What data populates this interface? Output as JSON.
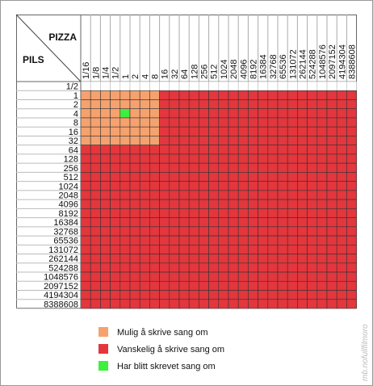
{
  "header": {
    "column_title": "PIZZA",
    "row_title": "PILS"
  },
  "columns": [
    "1/16",
    "1/8",
    "1/4",
    "1/2",
    "1",
    "2",
    "4",
    "8",
    "16",
    "32",
    "64",
    "128",
    "256",
    "512",
    "1024",
    "2048",
    "4096",
    "8192",
    "16384",
    "32768",
    "65536",
    "131072",
    "262144",
    "524288",
    "1048576",
    "2097152",
    "4194304",
    "8388608"
  ],
  "rows": [
    "1/2",
    "1",
    "2",
    "4",
    "8",
    "16",
    "32",
    "64",
    "128",
    "256",
    "512",
    "1024",
    "2048",
    "4096",
    "8192",
    "16384",
    "32768",
    "65536",
    "131072",
    "262144",
    "524288",
    "1048576",
    "2097152",
    "4194304",
    "8388608"
  ],
  "legend": [
    {
      "label": "Mulig å skrive sang om",
      "color": "#f5a26f"
    },
    {
      "label": "Vanskelig å skrive sang om",
      "color": "#e3363d"
    },
    {
      "label": "Har blitt skrevet sang om",
      "color": "#3ef03e"
    }
  ],
  "cells": [
    [
      null,
      null,
      null,
      null,
      null,
      null,
      null,
      null,
      null,
      null,
      null,
      null,
      null,
      null,
      null,
      null,
      null,
      null,
      null,
      null,
      null,
      null,
      null,
      null,
      null,
      null,
      null,
      null
    ],
    [
      0,
      0,
      0,
      0,
      0,
      0,
      0,
      0,
      1,
      1,
      1,
      1,
      1,
      1,
      1,
      1,
      1,
      1,
      1,
      1,
      1,
      1,
      1,
      1,
      1,
      1,
      1,
      1
    ],
    [
      0,
      0,
      0,
      0,
      0,
      0,
      0,
      0,
      1,
      1,
      1,
      1,
      1,
      1,
      1,
      1,
      1,
      1,
      1,
      1,
      1,
      1,
      1,
      1,
      1,
      1,
      1,
      1
    ],
    [
      0,
      0,
      0,
      0,
      2,
      0,
      0,
      0,
      1,
      1,
      1,
      1,
      1,
      1,
      1,
      1,
      1,
      1,
      1,
      1,
      1,
      1,
      1,
      1,
      1,
      1,
      1,
      1
    ],
    [
      0,
      0,
      0,
      0,
      0,
      0,
      0,
      0,
      1,
      1,
      1,
      1,
      1,
      1,
      1,
      1,
      1,
      1,
      1,
      1,
      1,
      1,
      1,
      1,
      1,
      1,
      1,
      1
    ],
    [
      0,
      0,
      0,
      0,
      0,
      0,
      0,
      0,
      1,
      1,
      1,
      1,
      1,
      1,
      1,
      1,
      1,
      1,
      1,
      1,
      1,
      1,
      1,
      1,
      1,
      1,
      1,
      1
    ],
    [
      0,
      0,
      0,
      0,
      0,
      0,
      0,
      0,
      1,
      1,
      1,
      1,
      1,
      1,
      1,
      1,
      1,
      1,
      1,
      1,
      1,
      1,
      1,
      1,
      1,
      1,
      1,
      1
    ],
    [
      1,
      1,
      1,
      1,
      1,
      1,
      1,
      1,
      1,
      1,
      1,
      1,
      1,
      1,
      1,
      1,
      1,
      1,
      1,
      1,
      1,
      1,
      1,
      1,
      1,
      1,
      1,
      1
    ],
    [
      1,
      1,
      1,
      1,
      1,
      1,
      1,
      1,
      1,
      1,
      1,
      1,
      1,
      1,
      1,
      1,
      1,
      1,
      1,
      1,
      1,
      1,
      1,
      1,
      1,
      1,
      1,
      1
    ],
    [
      1,
      1,
      1,
      1,
      1,
      1,
      1,
      1,
      1,
      1,
      1,
      1,
      1,
      1,
      1,
      1,
      1,
      1,
      1,
      1,
      1,
      1,
      1,
      1,
      1,
      1,
      1,
      1
    ],
    [
      1,
      1,
      1,
      1,
      1,
      1,
      1,
      1,
      1,
      1,
      1,
      1,
      1,
      1,
      1,
      1,
      1,
      1,
      1,
      1,
      1,
      1,
      1,
      1,
      1,
      1,
      1,
      1
    ],
    [
      1,
      1,
      1,
      1,
      1,
      1,
      1,
      1,
      1,
      1,
      1,
      1,
      1,
      1,
      1,
      1,
      1,
      1,
      1,
      1,
      1,
      1,
      1,
      1,
      1,
      1,
      1,
      1
    ],
    [
      1,
      1,
      1,
      1,
      1,
      1,
      1,
      1,
      1,
      1,
      1,
      1,
      1,
      1,
      1,
      1,
      1,
      1,
      1,
      1,
      1,
      1,
      1,
      1,
      1,
      1,
      1,
      1
    ],
    [
      1,
      1,
      1,
      1,
      1,
      1,
      1,
      1,
      1,
      1,
      1,
      1,
      1,
      1,
      1,
      1,
      1,
      1,
      1,
      1,
      1,
      1,
      1,
      1,
      1,
      1,
      1,
      1
    ],
    [
      1,
      1,
      1,
      1,
      1,
      1,
      1,
      1,
      1,
      1,
      1,
      1,
      1,
      1,
      1,
      1,
      1,
      1,
      1,
      1,
      1,
      1,
      1,
      1,
      1,
      1,
      1,
      1
    ],
    [
      1,
      1,
      1,
      1,
      1,
      1,
      1,
      1,
      1,
      1,
      1,
      1,
      1,
      1,
      1,
      1,
      1,
      1,
      1,
      1,
      1,
      1,
      1,
      1,
      1,
      1,
      1,
      1
    ],
    [
      1,
      1,
      1,
      1,
      1,
      1,
      1,
      1,
      1,
      1,
      1,
      1,
      1,
      1,
      1,
      1,
      1,
      1,
      1,
      1,
      1,
      1,
      1,
      1,
      1,
      1,
      1,
      1
    ],
    [
      1,
      1,
      1,
      1,
      1,
      1,
      1,
      1,
      1,
      1,
      1,
      1,
      1,
      1,
      1,
      1,
      1,
      1,
      1,
      1,
      1,
      1,
      1,
      1,
      1,
      1,
      1,
      1
    ],
    [
      1,
      1,
      1,
      1,
      1,
      1,
      1,
      1,
      1,
      1,
      1,
      1,
      1,
      1,
      1,
      1,
      1,
      1,
      1,
      1,
      1,
      1,
      1,
      1,
      1,
      1,
      1,
      1
    ],
    [
      1,
      1,
      1,
      1,
      1,
      1,
      1,
      1,
      1,
      1,
      1,
      1,
      1,
      1,
      1,
      1,
      1,
      1,
      1,
      1,
      1,
      1,
      1,
      1,
      1,
      1,
      1,
      1
    ],
    [
      1,
      1,
      1,
      1,
      1,
      1,
      1,
      1,
      1,
      1,
      1,
      1,
      1,
      1,
      1,
      1,
      1,
      1,
      1,
      1,
      1,
      1,
      1,
      1,
      1,
      1,
      1,
      1
    ],
    [
      1,
      1,
      1,
      1,
      1,
      1,
      1,
      1,
      1,
      1,
      1,
      1,
      1,
      1,
      1,
      1,
      1,
      1,
      1,
      1,
      1,
      1,
      1,
      1,
      1,
      1,
      1,
      1
    ],
    [
      1,
      1,
      1,
      1,
      1,
      1,
      1,
      1,
      1,
      1,
      1,
      1,
      1,
      1,
      1,
      1,
      1,
      1,
      1,
      1,
      1,
      1,
      1,
      1,
      1,
      1,
      1,
      1
    ],
    [
      1,
      1,
      1,
      1,
      1,
      1,
      1,
      1,
      1,
      1,
      1,
      1,
      1,
      1,
      1,
      1,
      1,
      1,
      1,
      1,
      1,
      1,
      1,
      1,
      1,
      1,
      1,
      1
    ],
    [
      1,
      1,
      1,
      1,
      1,
      1,
      1,
      1,
      1,
      1,
      1,
      1,
      1,
      1,
      1,
      1,
      1,
      1,
      1,
      1,
      1,
      1,
      1,
      1,
      1,
      1,
      1,
      1
    ]
  ],
  "watermark": "mb.nofullfilmoro"
}
